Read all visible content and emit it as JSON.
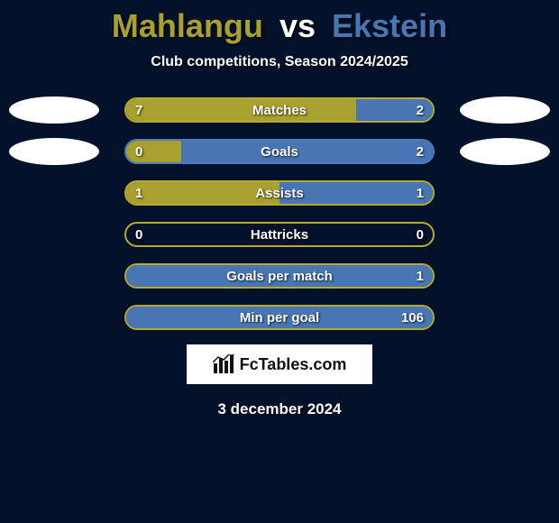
{
  "title": {
    "player1": "Mahlangu",
    "vs": "vs",
    "player2": "Ekstein"
  },
  "subtitle": "Club competitions, Season 2024/2025",
  "colors": {
    "p1": "#a8a02f",
    "p2": "#4876b5",
    "bg": "#03122a",
    "white": "#ffffff",
    "border_gold": "#b5ab2f",
    "border_blue": "#4f7cc0"
  },
  "rows": [
    {
      "label": "Matches",
      "left_val": "7",
      "right_val": "2",
      "left_pct": 75,
      "right_pct": 25,
      "border": "#b5ab2f",
      "show_left_ellipse": true,
      "show_right_ellipse": true
    },
    {
      "label": "Goals",
      "left_val": "0",
      "right_val": "2",
      "left_pct": 18,
      "right_pct": 82,
      "border": "#4f7cc0",
      "show_left_ellipse": true,
      "show_right_ellipse": true
    },
    {
      "label": "Assists",
      "left_val": "1",
      "right_val": "1",
      "left_pct": 50,
      "right_pct": 50,
      "border": "#b5ab2f",
      "show_left_ellipse": false,
      "show_right_ellipse": false
    },
    {
      "label": "Hattricks",
      "left_val": "0",
      "right_val": "0",
      "left_pct": 0,
      "right_pct": 0,
      "border": "#b5ab2f",
      "show_left_ellipse": false,
      "show_right_ellipse": false
    },
    {
      "label": "Goals per match",
      "left_val": "",
      "right_val": "1",
      "left_pct": 0,
      "right_pct": 100,
      "border": "#b5ab2f",
      "show_left_ellipse": false,
      "show_right_ellipse": false
    },
    {
      "label": "Min per goal",
      "left_val": "",
      "right_val": "106",
      "left_pct": 0,
      "right_pct": 100,
      "border": "#b5ab2f",
      "show_left_ellipse": false,
      "show_right_ellipse": false
    }
  ],
  "brand": "FcTables.com",
  "date": "3 december 2024"
}
